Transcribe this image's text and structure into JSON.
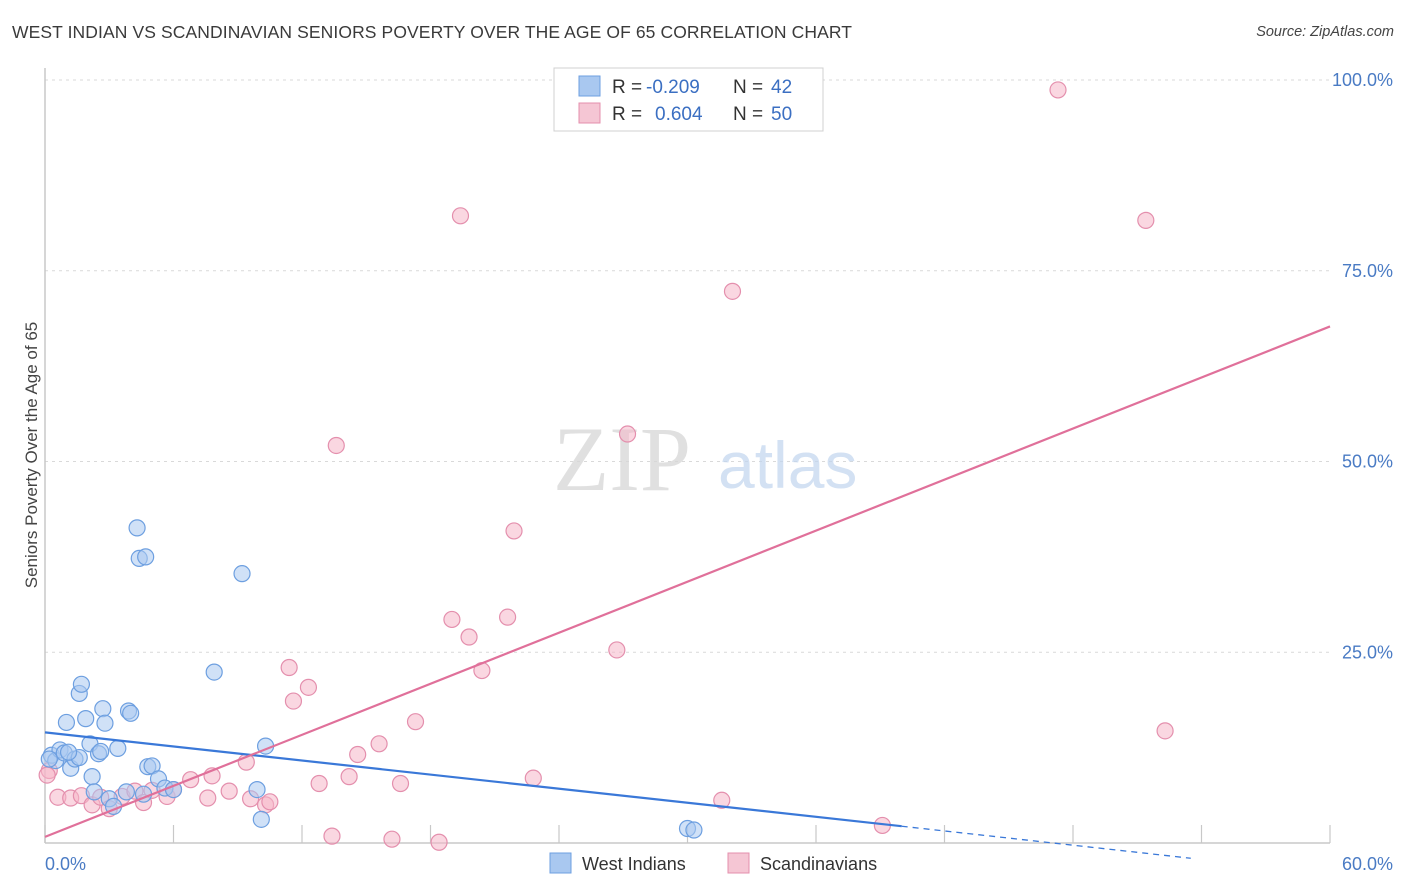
{
  "title": "WEST INDIAN VS SCANDINAVIAN SENIORS POVERTY OVER THE AGE OF 65 CORRELATION CHART",
  "source": "Source: ZipAtlas.com",
  "watermark": {
    "zip": "ZIP",
    "atlas": "atlas"
  },
  "colors": {
    "blue": "#3a78d8",
    "blue_fill": "#a9c8f0",
    "pink": "#e0709a",
    "pink_fill": "#f5b6c8",
    "axis_label": "#4a7bc4"
  },
  "chart_data": {
    "type": "scatter",
    "title": "WEST INDIAN VS SCANDINAVIAN SENIORS POVERTY OVER THE AGE OF 65 CORRELATION CHART",
    "xlabel": "",
    "ylabel": "Seniors Poverty Over the Age of 65",
    "xlim": [
      0,
      60
    ],
    "ylim": [
      0,
      100
    ],
    "x_tick_labels": [
      "0.0%",
      "60.0%"
    ],
    "y_ticks": [
      25,
      50,
      75,
      100
    ],
    "y_tick_labels": [
      "25.0%",
      "50.0%",
      "75.0%",
      "100.0%"
    ],
    "legend": {
      "rows": [
        {
          "r_label": "R =",
          "r_value": "-0.209",
          "n_label": "N =",
          "n_value": "42"
        },
        {
          "r_label": "R =",
          "r_value": "0.604",
          "n_label": "N =",
          "n_value": "50"
        }
      ]
    },
    "series": [
      {
        "name": "West Indians",
        "color": "#3a78d8",
        "trend": {
          "x0": 0,
          "y0": 14.5,
          "x1": 40,
          "y1": 2.2,
          "dash_x1": 53.5,
          "dash_y1": -2.0
        },
        "points": [
          [
            0.3,
            11.5
          ],
          [
            0.5,
            10.8
          ],
          [
            0.7,
            12.2
          ],
          [
            0.9,
            11.8
          ],
          [
            1.0,
            15.8
          ],
          [
            1.2,
            9.8
          ],
          [
            1.4,
            11.0
          ],
          [
            1.6,
            11.2
          ],
          [
            1.6,
            19.6
          ],
          [
            1.7,
            20.8
          ],
          [
            1.9,
            16.3
          ],
          [
            2.1,
            13.0
          ],
          [
            2.2,
            8.7
          ],
          [
            2.3,
            6.7
          ],
          [
            2.5,
            11.7
          ],
          [
            2.7,
            17.6
          ],
          [
            2.8,
            15.7
          ],
          [
            3.0,
            5.8
          ],
          [
            3.2,
            4.8
          ],
          [
            3.4,
            12.4
          ],
          [
            3.8,
            6.7
          ],
          [
            3.9,
            17.3
          ],
          [
            4.0,
            17.0
          ],
          [
            4.3,
            41.3
          ],
          [
            4.4,
            37.3
          ],
          [
            4.7,
            37.5
          ],
          [
            4.6,
            6.4
          ],
          [
            4.8,
            10.0
          ],
          [
            5.0,
            10.1
          ],
          [
            5.3,
            8.4
          ],
          [
            5.6,
            7.2
          ],
          [
            6.0,
            7.0
          ],
          [
            7.9,
            22.4
          ],
          [
            9.2,
            35.3
          ],
          [
            9.9,
            7.0
          ],
          [
            10.1,
            3.1
          ],
          [
            10.3,
            12.7
          ],
          [
            30.0,
            1.9
          ],
          [
            30.3,
            1.7
          ],
          [
            0.2,
            11.0
          ],
          [
            1.1,
            11.9
          ],
          [
            2.6,
            12.0
          ]
        ]
      },
      {
        "name": "Scandinavians",
        "color": "#e0709a",
        "trend": {
          "x0": 0,
          "y0": 0.8,
          "x1": 60,
          "y1": 67.7
        },
        "points": [
          [
            0.2,
            9.5
          ],
          [
            0.6,
            6.0
          ],
          [
            1.2,
            5.9
          ],
          [
            1.7,
            6.2
          ],
          [
            2.2,
            5.0
          ],
          [
            2.6,
            6.0
          ],
          [
            3.0,
            4.5
          ],
          [
            3.6,
            6.1
          ],
          [
            4.2,
            6.8
          ],
          [
            4.6,
            5.3
          ],
          [
            5.0,
            6.9
          ],
          [
            5.7,
            6.1
          ],
          [
            6.0,
            7.0
          ],
          [
            6.8,
            8.3
          ],
          [
            7.6,
            5.9
          ],
          [
            7.8,
            8.8
          ],
          [
            8.6,
            6.8
          ],
          [
            9.4,
            10.6
          ],
          [
            9.6,
            5.8
          ],
          [
            10.3,
            5.0
          ],
          [
            10.5,
            5.4
          ],
          [
            11.4,
            23.0
          ],
          [
            11.6,
            18.6
          ],
          [
            12.3,
            20.4
          ],
          [
            12.8,
            7.8
          ],
          [
            13.4,
            0.9
          ],
          [
            13.6,
            52.1
          ],
          [
            14.2,
            8.7
          ],
          [
            14.6,
            11.6
          ],
          [
            15.6,
            13.0
          ],
          [
            16.2,
            0.5
          ],
          [
            16.6,
            7.8
          ],
          [
            17.3,
            15.9
          ],
          [
            18.4,
            0.1
          ],
          [
            19.0,
            29.3
          ],
          [
            19.4,
            82.2
          ],
          [
            19.8,
            27.0
          ],
          [
            20.4,
            22.6
          ],
          [
            21.6,
            29.6
          ],
          [
            21.9,
            40.9
          ],
          [
            22.8,
            8.5
          ],
          [
            26.7,
            25.3
          ],
          [
            27.2,
            53.6
          ],
          [
            31.6,
            5.6
          ],
          [
            32.1,
            72.3
          ],
          [
            39.1,
            2.3
          ],
          [
            47.3,
            98.7
          ],
          [
            51.4,
            81.6
          ],
          [
            52.3,
            14.7
          ],
          [
            0.1,
            8.9
          ]
        ]
      }
    ]
  },
  "legend_bottom": [
    "West Indians",
    "Scandinavians"
  ]
}
